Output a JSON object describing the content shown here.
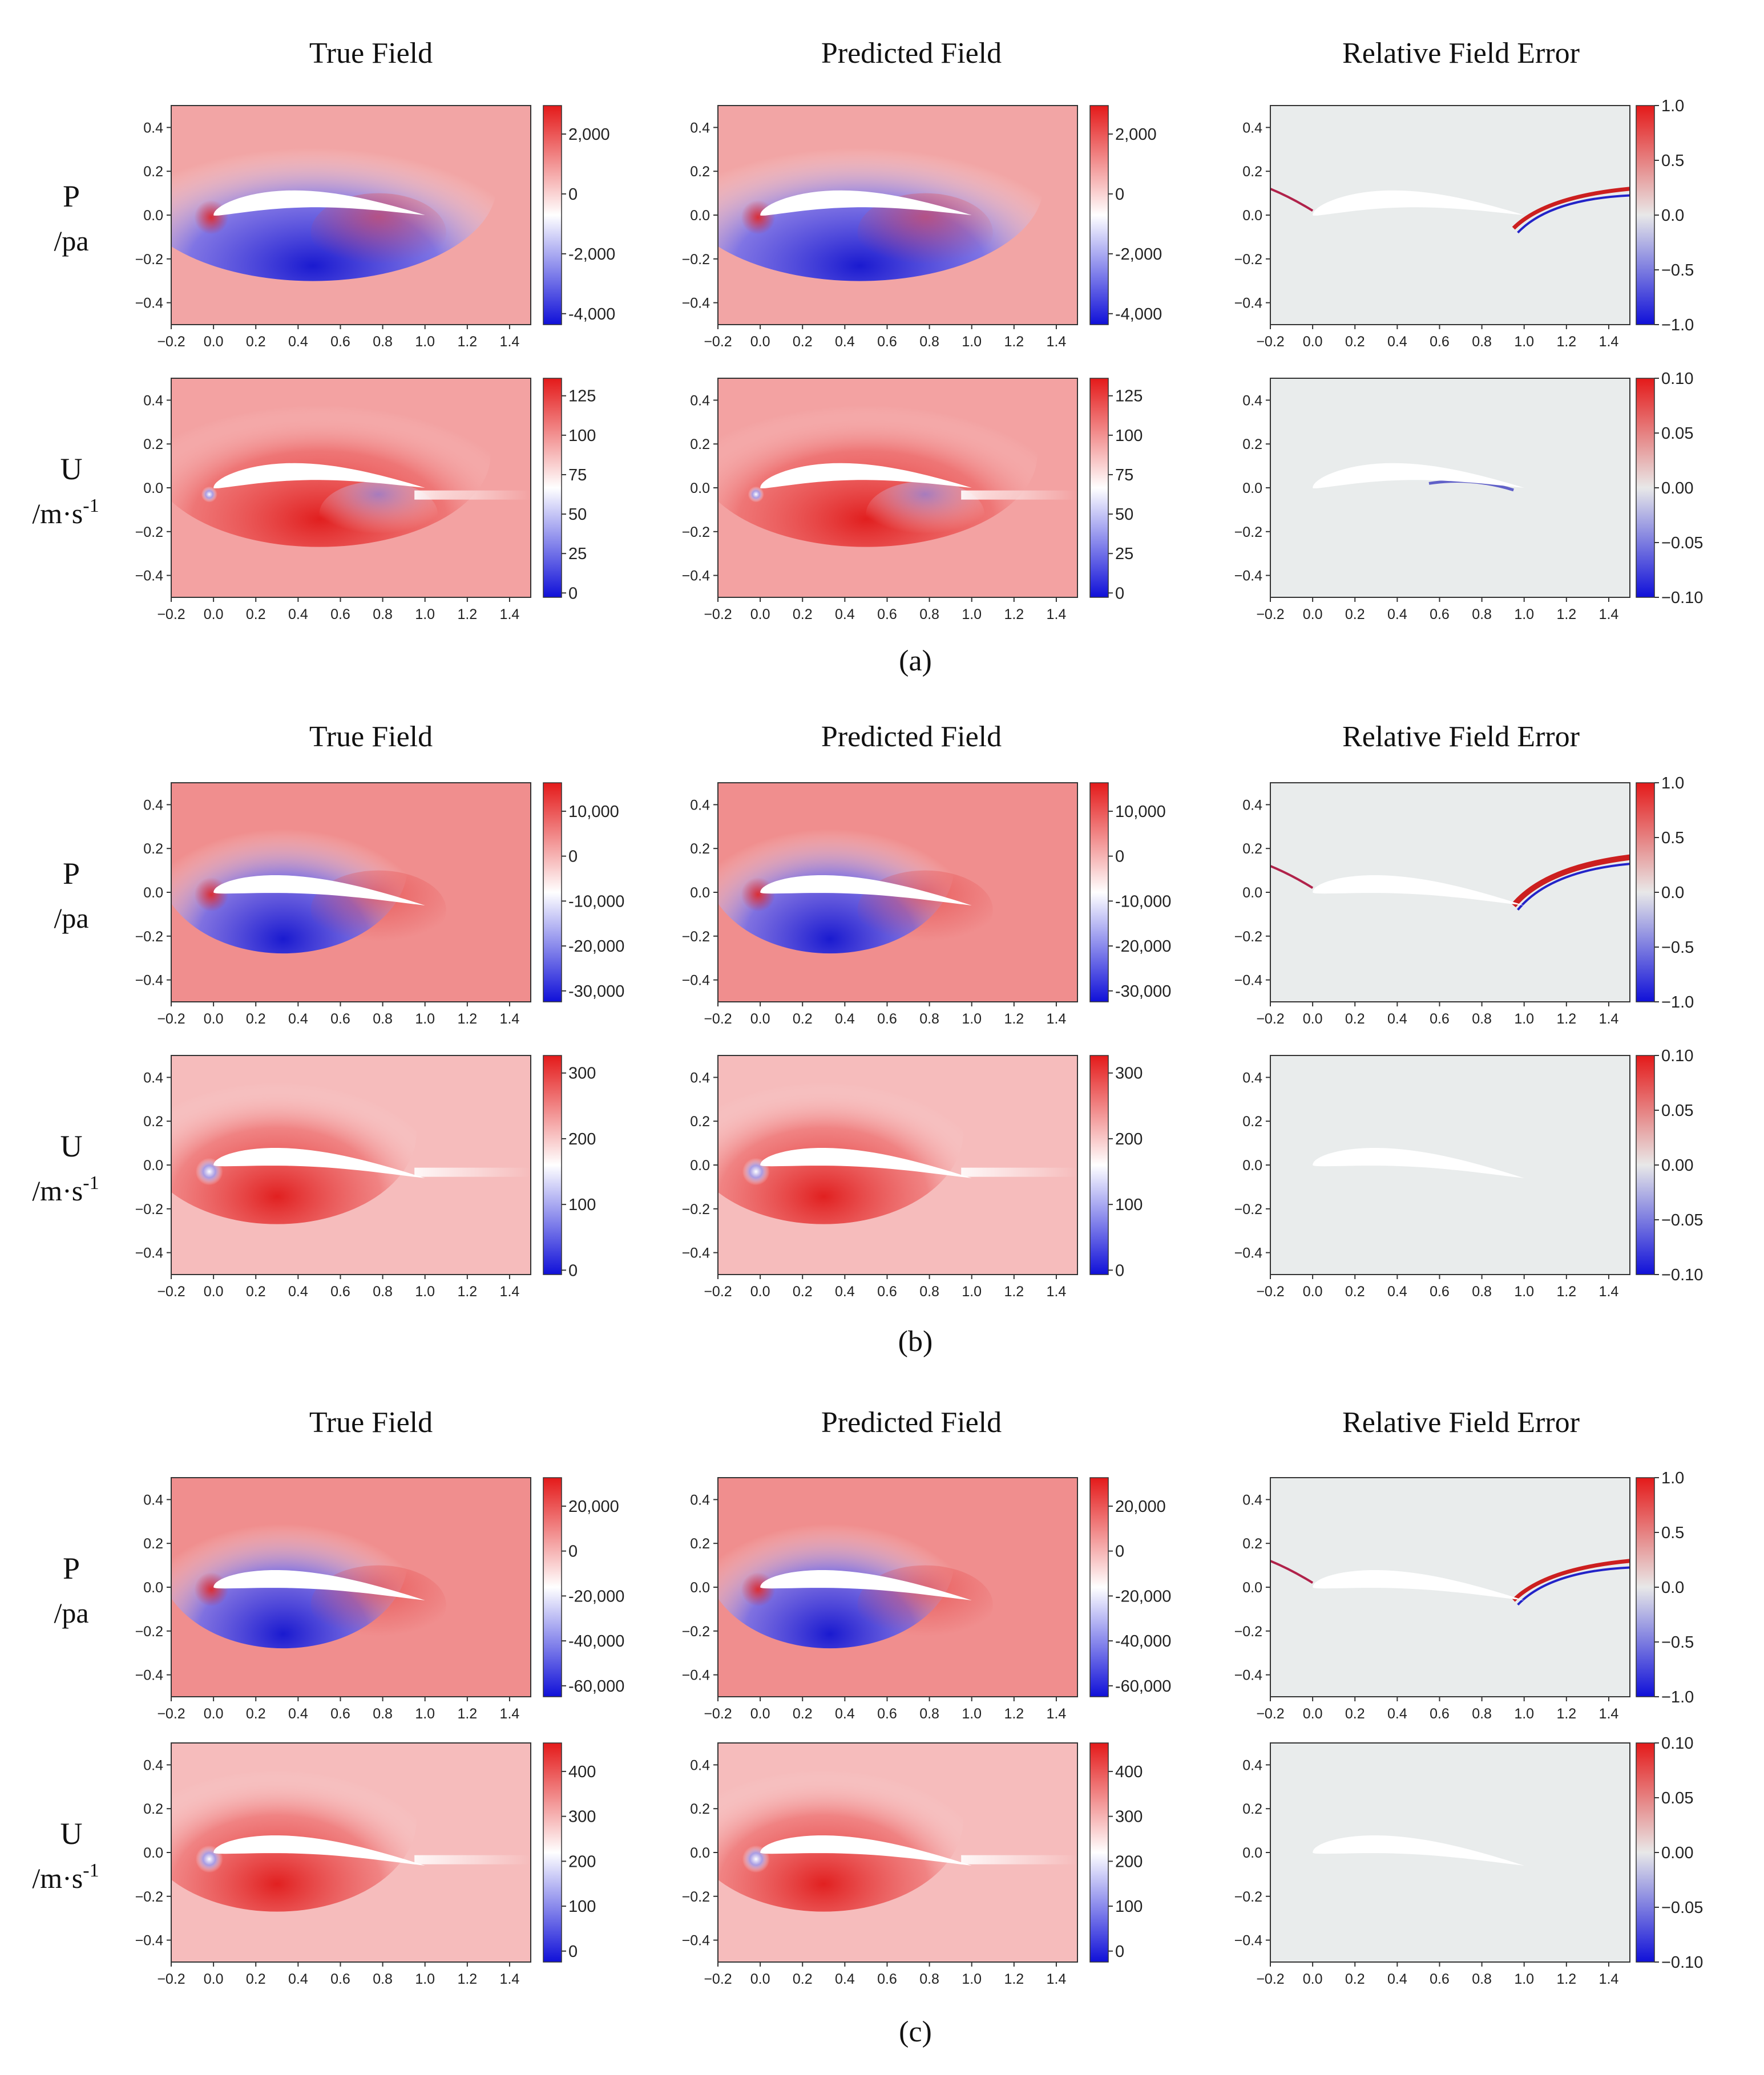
{
  "figure": {
    "panels": [
      {
        "caption": "(a)",
        "column_titles": [
          "True Field",
          "Predicted Field",
          "Relative Field Error"
        ],
        "rows": [
          {
            "var": "P",
            "unit": "/pa",
            "kind": "P",
            "true_cbar": [
              "2,000",
              "0",
              "-2,000",
              "-4,000"
            ],
            "pred_cbar": [
              "2,000",
              "0",
              "-2,000",
              "-4,000"
            ],
            "err_cbar": [
              "1.0",
              "0.5",
              "0.0",
              "−0.5",
              "−1.0"
            ]
          },
          {
            "var": "U",
            "unit": "/m·s",
            "unit_sup": "-1",
            "kind": "U",
            "true_cbar": [
              "125",
              "100",
              "75",
              "50",
              "25",
              "0"
            ],
            "pred_cbar": [
              "125",
              "100",
              "75",
              "50",
              "25",
              "0"
            ],
            "err_cbar": [
              "0.10",
              "0.05",
              "0.00",
              "−0.05",
              "−0.10"
            ]
          }
        ]
      },
      {
        "caption": "(b)",
        "column_titles": [
          "True Field",
          "Predicted Field",
          "Relative Field Error"
        ],
        "rows": [
          {
            "var": "P",
            "unit": "/pa",
            "kind": "P",
            "true_cbar": [
              "10,000",
              "0",
              "-10,000",
              "-20,000",
              "-30,000"
            ],
            "pred_cbar": [
              "10,000",
              "0",
              "-10,000",
              "-20,000",
              "-30,000"
            ],
            "err_cbar": [
              "1.0",
              "0.5",
              "0.0",
              "−0.5",
              "−1.0"
            ]
          },
          {
            "var": "U",
            "unit": "/m·s",
            "unit_sup": "-1",
            "kind": "U",
            "true_cbar": [
              "300",
              "200",
              "100",
              "0"
            ],
            "pred_cbar": [
              "300",
              "200",
              "100",
              "0"
            ],
            "err_cbar": [
              "0.10",
              "0.05",
              "0.00",
              "−0.05",
              "−0.10"
            ]
          }
        ]
      },
      {
        "caption": "(c)",
        "column_titles": [
          "True Field",
          "Predicted Field",
          "Relative Field Error"
        ],
        "rows": [
          {
            "var": "P",
            "unit": "/pa",
            "kind": "P",
            "true_cbar": [
              "20,000",
              "0",
              "-20,000",
              "-40,000",
              "-60,000"
            ],
            "pred_cbar": [
              "20,000",
              "0",
              "-20,000",
              "-40,000",
              "-60,000"
            ],
            "err_cbar": [
              "1.0",
              "0.5",
              "0.0",
              "−0.5",
              "−1.0"
            ]
          },
          {
            "var": "U",
            "unit": "/m·s",
            "unit_sup": "-1",
            "kind": "U",
            "true_cbar": [
              "400",
              "300",
              "200",
              "100",
              "0"
            ],
            "pred_cbar": [
              "400",
              "300",
              "200",
              "100",
              "0"
            ],
            "err_cbar": [
              "0.10",
              "0.05",
              "0.00",
              "−0.05",
              "−0.10"
            ]
          }
        ]
      }
    ]
  },
  "chart_data": {
    "type": "heatmap",
    "x_ticks": [
      "−0.2",
      "0.0",
      "0.2",
      "0.4",
      "0.6",
      "0.8",
      "1.0",
      "1.2",
      "1.4"
    ],
    "y_ticks": [
      "0.4",
      "0.2",
      "0.0",
      "−0.2",
      "−0.4"
    ],
    "xlim": [
      -0.2,
      1.5
    ],
    "ylim": [
      -0.5,
      0.5
    ]
  },
  "colors": {
    "blue": "#1010d8",
    "white": "#ffffff",
    "red": "#e41a1a",
    "error_bg": "#e9ecec"
  }
}
